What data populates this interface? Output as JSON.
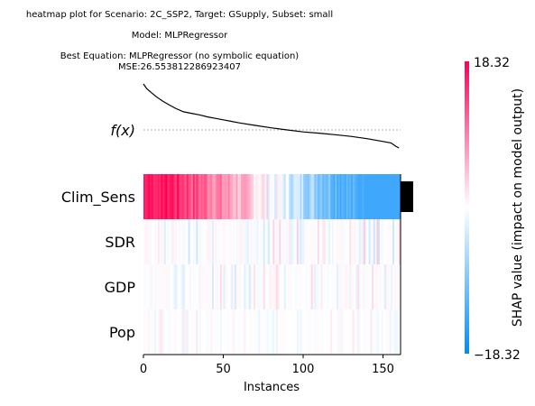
{
  "chart_data": {
    "type": "heatmap",
    "title_lines": [
      "heatmap plot for Scenario: 2C_SSP2, Target: GSupply, Subset: small",
      "Model: MLPRegressor",
      "Best Equation: MLPRegressor (no symbolic equation)",
      "MSE:26.553812286923407"
    ],
    "xlabel": "Instances",
    "fx_label": "f(x)",
    "features": [
      "Clim_Sens",
      "SDR",
      "GDP",
      "Pop"
    ],
    "n_instances": 161,
    "xlim": [
      0,
      161
    ],
    "x_ticks": [
      "0",
      "50",
      "100",
      "150"
    ],
    "x_tick_values": [
      0,
      50,
      100,
      150
    ],
    "feature_importance_bar_relative": [
      1.0,
      0.03,
      0.02,
      0.01
    ],
    "fx_curve": {
      "x": [
        0,
        2,
        5,
        8,
        12,
        16,
        20,
        25,
        30,
        35,
        40,
        45,
        50,
        55,
        60,
        70,
        80,
        90,
        100,
        110,
        120,
        130,
        140,
        150,
        155,
        158,
        160
      ],
      "y": [
        18.32,
        16.5,
        14.8,
        13.2,
        11.5,
        10.0,
        8.6,
        7.2,
        6.6,
        6.0,
        5.2,
        4.6,
        4.0,
        3.4,
        2.8,
        1.8,
        0.8,
        0.0,
        -0.8,
        -1.3,
        -1.9,
        -2.6,
        -3.5,
        -4.6,
        -5.2,
        -6.5,
        -7.2
      ]
    },
    "fx_reference": 0.0,
    "row_strength": [
      1.0,
      0.09,
      0.07,
      0.04
    ],
    "colorbar": {
      "max_label": "18.32",
      "min_label": "−18.32",
      "label": "SHAP value (impact on model output)",
      "range": [
        -18.32,
        18.32
      ]
    },
    "colors": {
      "positive": "#ff0051",
      "negative": "#008bfb",
      "neutral": "#ffffff",
      "bar": "#000000"
    }
  }
}
